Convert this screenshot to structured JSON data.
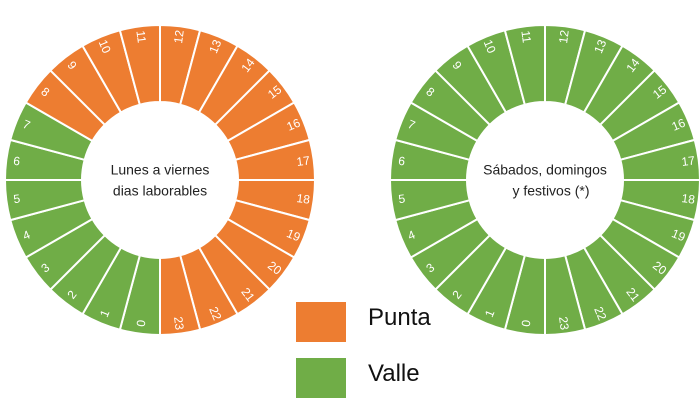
{
  "colors": {
    "punta": "#ED7D31",
    "valle": "#70AD47",
    "divider": "#ffffff",
    "center_text": "#222222"
  },
  "legend": [
    {
      "key": "punta",
      "label": "Punta"
    },
    {
      "key": "valle",
      "label": "Valle"
    }
  ],
  "dials": [
    {
      "center_lines": [
        "Lunes a viernes",
        "dias laborables"
      ],
      "hours": [
        {
          "label": "0",
          "period": "valle"
        },
        {
          "label": "1",
          "period": "valle"
        },
        {
          "label": "2",
          "period": "valle"
        },
        {
          "label": "3",
          "period": "valle"
        },
        {
          "label": "4",
          "period": "valle"
        },
        {
          "label": "5",
          "period": "valle"
        },
        {
          "label": "6",
          "period": "valle"
        },
        {
          "label": "7",
          "period": "valle"
        },
        {
          "label": "8",
          "period": "punta"
        },
        {
          "label": "9",
          "period": "punta"
        },
        {
          "label": "10",
          "period": "punta"
        },
        {
          "label": "11",
          "period": "punta"
        },
        {
          "label": "12",
          "period": "punta"
        },
        {
          "label": "13",
          "period": "punta"
        },
        {
          "label": "14",
          "period": "punta"
        },
        {
          "label": "15",
          "period": "punta"
        },
        {
          "label": "16",
          "period": "punta"
        },
        {
          "label": "17",
          "period": "punta"
        },
        {
          "label": "18",
          "period": "punta"
        },
        {
          "label": "19",
          "period": "punta"
        },
        {
          "label": "20",
          "period": "punta"
        },
        {
          "label": "21",
          "period": "punta"
        },
        {
          "label": "22",
          "period": "punta"
        },
        {
          "label": "23",
          "period": "punta"
        }
      ]
    },
    {
      "center_lines": [
        "Sábados, domingos",
        "y festivos (*)"
      ],
      "hours": [
        {
          "label": "0",
          "period": "valle"
        },
        {
          "label": "1",
          "period": "valle"
        },
        {
          "label": "2",
          "period": "valle"
        },
        {
          "label": "3",
          "period": "valle"
        },
        {
          "label": "4",
          "period": "valle"
        },
        {
          "label": "5",
          "period": "valle"
        },
        {
          "label": "6",
          "period": "valle"
        },
        {
          "label": "7",
          "period": "valle"
        },
        {
          "label": "8",
          "period": "valle"
        },
        {
          "label": "9",
          "period": "valle"
        },
        {
          "label": "10",
          "period": "valle"
        },
        {
          "label": "11",
          "period": "valle"
        },
        {
          "label": "12",
          "period": "valle"
        },
        {
          "label": "13",
          "period": "valle"
        },
        {
          "label": "14",
          "period": "valle"
        },
        {
          "label": "15",
          "period": "valle"
        },
        {
          "label": "16",
          "period": "valle"
        },
        {
          "label": "17",
          "period": "valle"
        },
        {
          "label": "18",
          "period": "valle"
        },
        {
          "label": "19",
          "period": "valle"
        },
        {
          "label": "20",
          "period": "valle"
        },
        {
          "label": "21",
          "period": "valle"
        },
        {
          "label": "22",
          "period": "valle"
        },
        {
          "label": "23",
          "period": "valle"
        }
      ]
    }
  ]
}
